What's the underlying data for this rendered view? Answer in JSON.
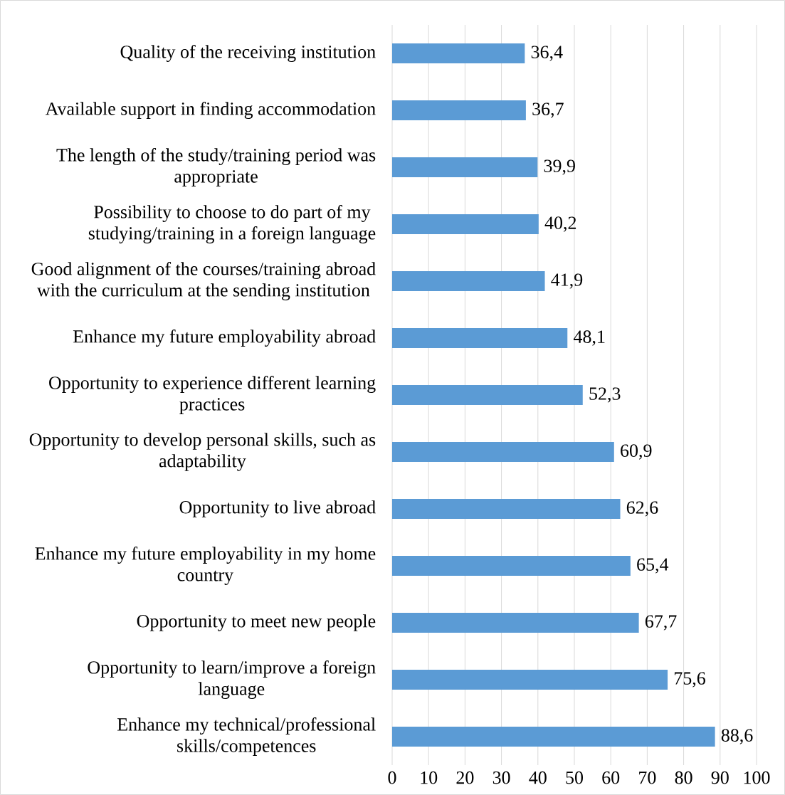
{
  "chart_data": {
    "type": "bar",
    "orientation": "horizontal",
    "categories": [
      "Quality of the receiving institution",
      "Available support in finding accommodation",
      "The length of the study/training period was appropriate",
      "Possibility to choose to do part of my studying/training in a foreign language",
      "Good alignment of the courses/training abroad with the curriculum at the sending institution",
      "Enhance my future employability abroad",
      "Opportunity to experience different learning practices",
      "Opportunity to develop personal skills, such as adaptability",
      "Opportunity to live abroad",
      "Enhance my future employability in my home country",
      "Opportunity to meet new people",
      "Opportunity to learn/improve a foreign language",
      "Enhance my technical/professional skills/competences"
    ],
    "values": [
      36.4,
      36.7,
      39.9,
      40.2,
      41.9,
      48.1,
      52.3,
      60.9,
      62.6,
      65.4,
      67.7,
      75.6,
      88.6
    ],
    "value_labels": [
      "36,4",
      "36,7",
      "39,9",
      "40,2",
      "41,9",
      "48,1",
      "52,3",
      "60,9",
      "62,6",
      "65,4",
      "67,7",
      "75,6",
      "88,6"
    ],
    "color": "#5b9bd5",
    "xlim": [
      0,
      100
    ],
    "xticks": [
      0,
      10,
      20,
      30,
      40,
      50,
      60,
      70,
      80,
      90,
      100
    ],
    "grid": "x"
  }
}
